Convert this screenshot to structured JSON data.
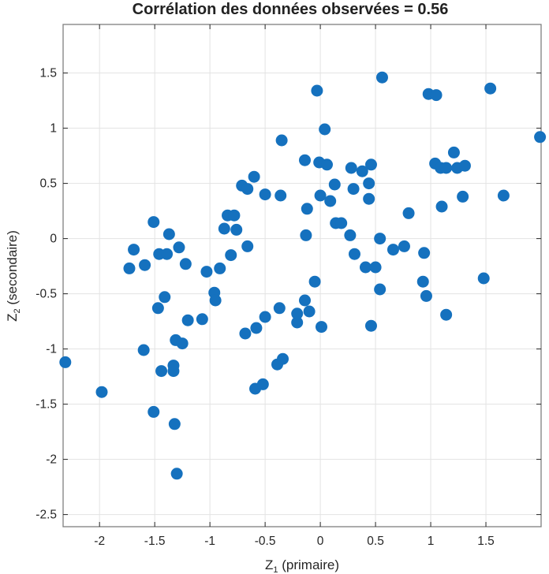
{
  "chart_data": {
    "type": "scatter",
    "title": "Corrélation des données observées = 0.56",
    "xlabel": "Z1 (primaire)",
    "ylabel": "Z2 (secondaire)",
    "xlim": [
      -2.33,
      2.0
    ],
    "ylim": [
      -2.61,
      1.94
    ],
    "grid": true,
    "marker_color": "#1571be",
    "xticks": [
      -2,
      -1.5,
      -1,
      -0.5,
      0,
      0.5,
      1,
      1.5
    ],
    "xtick_labels": [
      "-2",
      "-1.5",
      "-1",
      "-0.5",
      "0",
      "0.5",
      "1",
      "1.5"
    ],
    "yticks": [
      -2.5,
      -2,
      -1.5,
      -1,
      -0.5,
      0,
      0.5,
      1,
      1.5
    ],
    "ytick_labels": [
      "-2.5",
      "-2",
      "-1.5",
      "-1",
      "-0.5",
      "0",
      "0.5",
      "1",
      "1.5"
    ],
    "points": [
      [
        -2.31,
        -1.12
      ],
      [
        -1.98,
        -1.39
      ],
      [
        -1.73,
        -0.27
      ],
      [
        -1.69,
        -0.1
      ],
      [
        -1.59,
        -0.24
      ],
      [
        -1.6,
        -1.01
      ],
      [
        -1.51,
        0.15
      ],
      [
        -1.51,
        -1.57
      ],
      [
        -1.47,
        -0.63
      ],
      [
        -1.46,
        -0.14
      ],
      [
        -1.44,
        -1.2
      ],
      [
        -1.41,
        -0.53
      ],
      [
        -1.39,
        -0.14
      ],
      [
        -1.37,
        0.04
      ],
      [
        -1.33,
        -1.2
      ],
      [
        -1.33,
        -1.15
      ],
      [
        -1.32,
        -1.68
      ],
      [
        -1.31,
        -0.92
      ],
      [
        -1.3,
        -2.13
      ],
      [
        -1.28,
        -0.08
      ],
      [
        -1.25,
        -0.95
      ],
      [
        -1.22,
        -0.23
      ],
      [
        -1.2,
        -0.74
      ],
      [
        -1.07,
        -0.73
      ],
      [
        -1.03,
        -0.3
      ],
      [
        -0.96,
        -0.49
      ],
      [
        -0.95,
        -0.56
      ],
      [
        -0.91,
        -0.27
      ],
      [
        -0.87,
        0.09
      ],
      [
        -0.84,
        0.21
      ],
      [
        -0.81,
        -0.15
      ],
      [
        -0.78,
        0.21
      ],
      [
        -0.76,
        0.08
      ],
      [
        -0.71,
        0.48
      ],
      [
        -0.68,
        -0.86
      ],
      [
        -0.66,
        0.45
      ],
      [
        -0.66,
        -0.07
      ],
      [
        -0.6,
        0.56
      ],
      [
        -0.59,
        -1.36
      ],
      [
        -0.58,
        -0.81
      ],
      [
        -0.52,
        -1.32
      ],
      [
        -0.5,
        0.4
      ],
      [
        -0.5,
        -0.71
      ],
      [
        -0.39,
        -1.14
      ],
      [
        -0.37,
        -0.63
      ],
      [
        -0.36,
        0.39
      ],
      [
        -0.35,
        0.89
      ],
      [
        -0.34,
        -1.09
      ],
      [
        -0.21,
        -0.76
      ],
      [
        -0.21,
        -0.68
      ],
      [
        -0.14,
        0.71
      ],
      [
        -0.14,
        -0.56
      ],
      [
        -0.13,
        0.03
      ],
      [
        -0.12,
        0.27
      ],
      [
        -0.1,
        -0.66
      ],
      [
        -0.05,
        -0.39
      ],
      [
        -0.03,
        1.34
      ],
      [
        -0.01,
        0.69
      ],
      [
        0.0,
        0.39
      ],
      [
        0.01,
        -0.8
      ],
      [
        0.04,
        0.99
      ],
      [
        0.06,
        0.67
      ],
      [
        0.09,
        0.34
      ],
      [
        0.13,
        0.49
      ],
      [
        0.14,
        0.14
      ],
      [
        0.19,
        0.14
      ],
      [
        0.27,
        0.03
      ],
      [
        0.28,
        0.64
      ],
      [
        0.31,
        -0.14
      ],
      [
        0.3,
        0.45
      ],
      [
        0.38,
        0.61
      ],
      [
        0.41,
        -0.26
      ],
      [
        0.44,
        0.5
      ],
      [
        0.46,
        0.67
      ],
      [
        0.44,
        0.36
      ],
      [
        0.46,
        -0.79
      ],
      [
        0.5,
        -0.26
      ],
      [
        0.54,
        0.0
      ],
      [
        0.54,
        -0.46
      ],
      [
        0.56,
        1.46
      ],
      [
        0.66,
        -0.1
      ],
      [
        0.76,
        -0.07
      ],
      [
        0.8,
        0.23
      ],
      [
        0.93,
        -0.39
      ],
      [
        0.94,
        -0.13
      ],
      [
        0.96,
        -0.52
      ],
      [
        0.98,
        1.31
      ],
      [
        1.04,
        0.68
      ],
      [
        1.05,
        1.3
      ],
      [
        1.09,
        0.64
      ],
      [
        1.1,
        0.29
      ],
      [
        1.14,
        -0.69
      ],
      [
        1.14,
        0.64
      ],
      [
        1.21,
        0.78
      ],
      [
        1.24,
        0.64
      ],
      [
        1.29,
        0.38
      ],
      [
        1.31,
        0.66
      ],
      [
        1.48,
        -0.36
      ],
      [
        1.54,
        1.36
      ],
      [
        1.66,
        0.39
      ],
      [
        1.99,
        0.92
      ]
    ]
  }
}
